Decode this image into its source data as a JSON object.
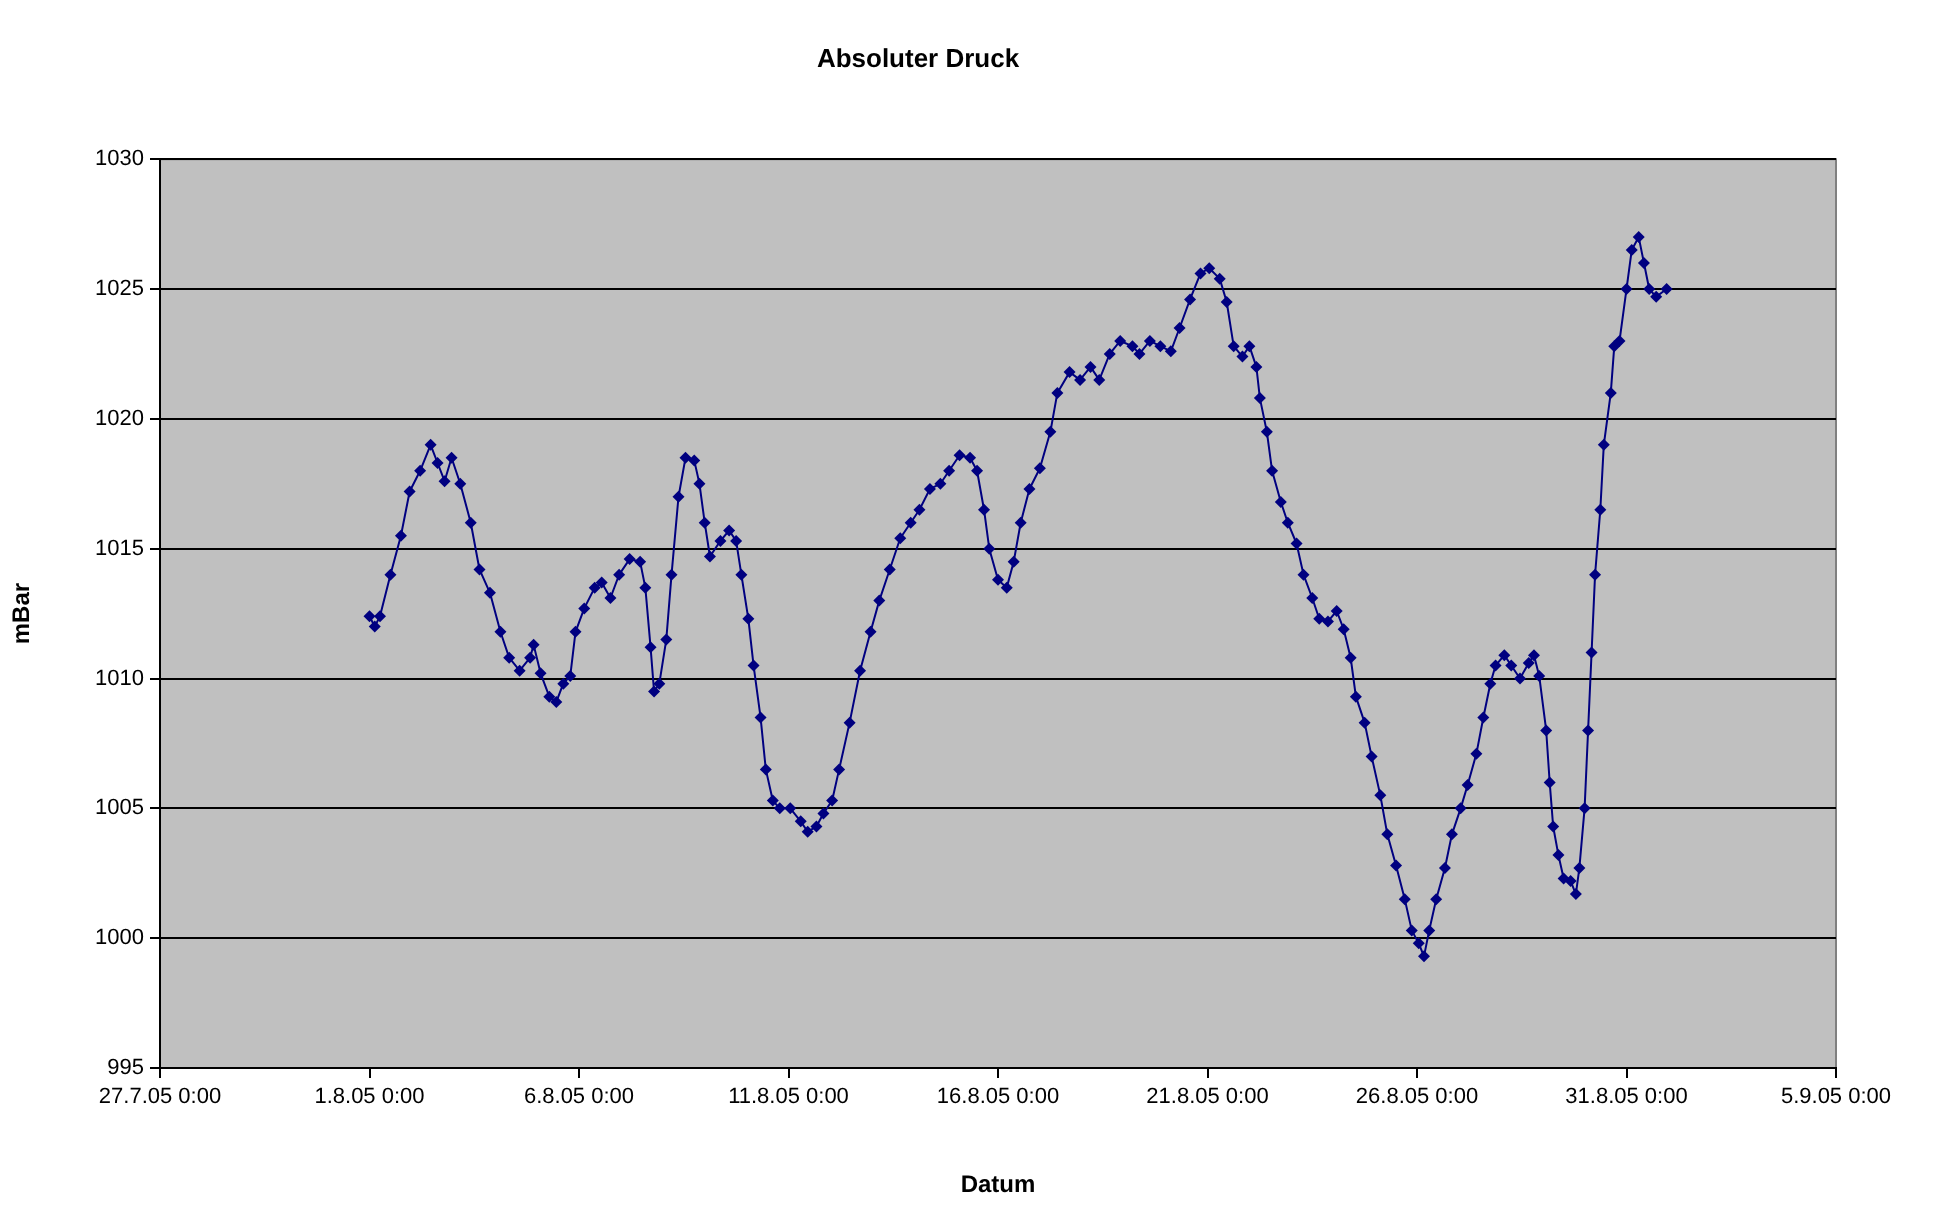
{
  "chart_data": {
    "type": "line",
    "title": "Absoluter Druck",
    "xlabel": "Datum",
    "ylabel": "mBar",
    "color": "#000080",
    "marker": "diamond",
    "grid": "y",
    "legend": false,
    "xlim": [
      "--07-27",
      "--09-05"
    ],
    "xticks": [
      {
        "value": "--07-27",
        "label": "27.7.05 0:00"
      },
      {
        "value": "--08-01",
        "label": "1.8.05 0:00"
      },
      {
        "value": "--08-06",
        "label": "6.8.05 0:00"
      },
      {
        "value": "--08-11",
        "label": "11.8.05 0:00"
      },
      {
        "value": "--08-16",
        "label": "16.8.05 0:00"
      },
      {
        "value": "--08-21",
        "label": "21.8.05 0:00"
      },
      {
        "value": "--08-26",
        "label": "26.8.05 0:00"
      },
      {
        "value": "--08-31",
        "label": "31.8.05 0:00"
      },
      {
        "value": "--09-05",
        "label": "5.9.05 0:00"
      }
    ],
    "ylim": [
      995,
      1030
    ],
    "yticks": [
      995,
      1000,
      1005,
      1010,
      1015,
      1020,
      1025,
      1030
    ],
    "x": [
      "--08-01T00:00",
      "--08-01T03:00",
      "--08-01T06:00",
      "--08-01T12:00",
      "--08-01T18:00",
      "--08-01T23:00",
      "--08-02T05:00",
      "--08-02T11:00",
      "--08-02T15:00",
      "--08-02T19:00",
      "--08-02T23:00",
      "--08-03T04:00",
      "--08-03T10:00",
      "--08-03T15:00",
      "--08-03T21:00",
      "--08-04T03:00",
      "--08-04T08:00",
      "--08-04T14:00",
      "--08-04T20:00",
      "--08-04T22:00",
      "--08-05T02:00",
      "--08-05T07:00",
      "--08-05T11:00",
      "--08-05T15:00",
      "--08-05T19:00",
      "--08-05T22:00",
      "--08-06T03:00",
      "--08-06T09:00",
      "--08-06T13:00",
      "--08-06T18:00",
      "--08-06T23:00",
      "--08-07T05:00",
      "--08-07T11:00",
      "--08-07T14:00",
      "--08-07T17:00",
      "--08-07T19:00",
      "--08-07T22:00",
      "--08-08T02:00",
      "--08-08T05:00",
      "--08-08T09:00",
      "--08-08T13:00",
      "--08-08T18:00",
      "--08-08T21:00",
      "--08-09T00:00",
      "--08-09T03:00",
      "--08-09T09:00",
      "--08-09T14:00",
      "--08-09T18:00",
      "--08-09T21:00",
      "--08-10T01:00",
      "--08-10T04:00",
      "--08-10T08:00",
      "--08-10T11:00",
      "--08-10T15:00",
      "--08-10T19:00",
      "--08-11T01:00",
      "--08-11T07:00",
      "--08-11T11:00",
      "--08-11T16:00",
      "--08-11T20:00",
      "--08-12T01:00",
      "--08-12T05:00",
      "--08-12T11:00",
      "--08-12T17:00",
      "--08-12T23:00",
      "--08-13T04:00",
      "--08-13T10:00",
      "--08-13T16:00",
      "--08-13T22:00",
      "--08-14T03:00",
      "--08-14T09:00",
      "--08-14T15:00",
      "--08-14T20:00",
      "--08-15T02:00",
      "--08-15T08:00",
      "--08-15T12:00",
      "--08-15T16:00",
      "--08-15T19:00",
      "--08-16T00:00",
      "--08-16T05:00",
      "--08-16T09:00",
      "--08-16T13:00",
      "--08-16T18:00",
      "--08-17T00:00",
      "--08-17T06:00",
      "--08-17T10:00",
      "--08-17T17:00",
      "--08-17T23:00",
      "--08-18T05:00",
      "--08-18T10:00",
      "--08-18T16:00",
      "--08-18T22:00",
      "--08-19T05:00",
      "--08-19T09:00",
      "--08-19T15:00",
      "--08-19T21:00",
      "--08-20T03:00",
      "--08-20T08:00",
      "--08-20T14:00",
      "--08-20T20:00",
      "--08-21T01:00",
      "--08-21T07:00",
      "--08-21T11:00",
      "--08-21T15:00",
      "--08-21T20:00",
      "--08-22T00:00",
      "--08-22T04:00",
      "--08-22T06:00",
      "--08-22T10:00",
      "--08-22T13:00",
      "--08-22T18:00",
      "--08-22T22:00",
      "--08-23T03:00",
      "--08-23T07:00",
      "--08-23T12:00",
      "--08-23T16:00",
      "--08-23T21:00",
      "--08-24T02:00",
      "--08-24T06:00",
      "--08-24T10:00",
      "--08-24T13:00",
      "--08-24T18:00",
      "--08-24T22:00",
      "--08-25T03:00",
      "--08-25T07:00",
      "--08-25T12:00",
      "--08-25T17:00",
      "--08-25T21:00",
      "--08-26T01:00",
      "--08-26T04:00",
      "--08-26T07:00",
      "--08-26T11:00",
      "--08-26T16:00",
      "--08-26T20:00",
      "--08-27T01:00",
      "--08-27T05:00",
      "--08-27T10:00",
      "--08-27T14:00",
      "--08-27T18:00",
      "--08-27T21:00",
      "--08-28T02:00",
      "--08-28T06:00",
      "--08-28T11:00",
      "--08-28T16:00",
      "--08-28T19:00",
      "--08-28T22:00",
      "--08-29T02:00",
      "--08-29T04:00",
      "--08-29T06:00",
      "--08-29T09:00",
      "--08-29T12:00",
      "--08-29T16:00",
      "--08-29T19:00",
      "--08-29T21:00",
      "--08-30T00:00",
      "--08-30T02:00",
      "--08-30T04:00",
      "--08-30T06:00",
      "--08-30T09:00",
      "--08-30T11:00",
      "--08-30T15:00",
      "--08-30T17:00",
      "--08-30T20:00",
      "--08-31T00:00",
      "--08-31T03:00",
      "--08-31T07:00",
      "--08-31T10:00",
      "--08-31T13:00",
      "--08-31T17:00",
      "--08-31T23:00"
    ],
    "values": [
      1012.4,
      1012.0,
      1012.4,
      1014,
      1015.5,
      1017.2,
      1018.0,
      1019.0,
      1018.3,
      1017.6,
      1018.5,
      1017.5,
      1016,
      1014.2,
      1013.3,
      1011.8,
      1010.8,
      1010.3,
      1010.8,
      1011.3,
      1010.2,
      1009.3,
      1009.1,
      1009.8,
      1010.1,
      1011.8,
      1012.7,
      1013.5,
      1013.7,
      1013.1,
      1014.0,
      1014.6,
      1014.5,
      1013.5,
      1011.2,
      1009.5,
      1009.8,
      1011.5,
      1014,
      1017,
      1018.5,
      1018.4,
      1017.5,
      1016,
      1014.7,
      1015.3,
      1015.7,
      1015.3,
      1014,
      1012.3,
      1010.5,
      1008.5,
      1006.5,
      1005.3,
      1005.0,
      1005,
      1004.5,
      1004.1,
      1004.3,
      1004.8,
      1005.3,
      1006.5,
      1008.3,
      1010.3,
      1011.8,
      1013.0,
      1014.2,
      1015.4,
      1016,
      1016.5,
      1017.3,
      1017.5,
      1018.0,
      1018.6,
      1018.5,
      1018.0,
      1016.5,
      1015,
      1013.8,
      1013.5,
      1014.5,
      1016,
      1017.3,
      1018.1,
      1019.5,
      1021,
      1021.8,
      1021.5,
      1022.0,
      1021.5,
      1022.5,
      1023,
      1022.8,
      1022.5,
      1023,
      1022.8,
      1022.6,
      1023.5,
      1024.6,
      1025.6,
      1025.8,
      1025.4,
      1024.5,
      1022.8,
      1022.4,
      1022.8,
      1022,
      1020.8,
      1019.5,
      1018,
      1016.8,
      1016,
      1015.2,
      1014.0,
      1013.1,
      1012.3,
      1012.2,
      1012.6,
      1011.9,
      1010.8,
      1009.3,
      1008.3,
      1007.0,
      1005.5,
      1004.0,
      1002.8,
      1001.5,
      1000.3,
      999.8,
      999.3,
      1000.3,
      1001.5,
      1002.7,
      1004.0,
      1005.0,
      1005.9,
      1007.1,
      1008.5,
      1009.8,
      1010.5,
      1010.9,
      1010.5,
      1010.0,
      1010.6,
      1010.9,
      1010.1,
      1008.0,
      1006.0,
      1004.3,
      1003.2,
      1002.3,
      1002.2,
      1001.7,
      1002.7,
      1005.0,
      1008.0,
      1011.0,
      1014.0,
      1016.5,
      1019.0,
      1021,
      1022.8,
      1023,
      1025,
      1026.5,
      1027.0,
      1026.0,
      1025,
      1024.7,
      1025.0
    ]
  }
}
